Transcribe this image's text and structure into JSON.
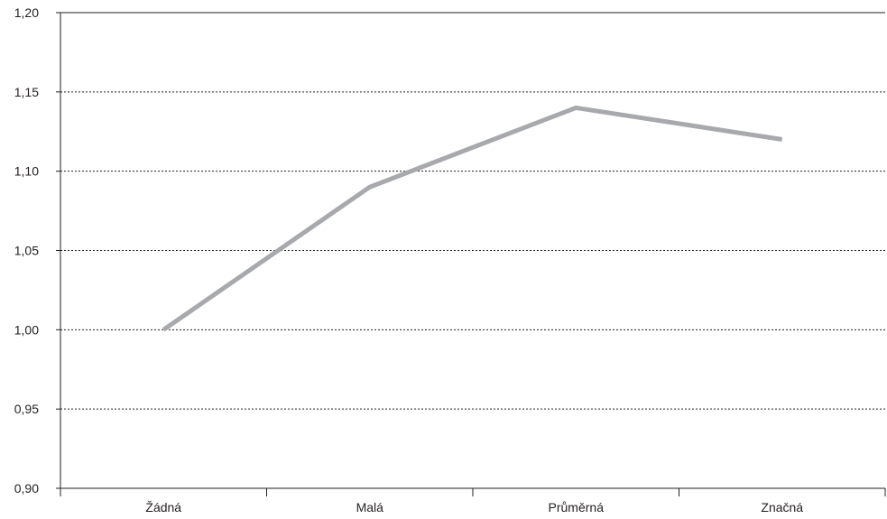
{
  "chart_data": {
    "type": "line",
    "title": "",
    "xlabel": "",
    "ylabel": "",
    "categories": [
      "Žádná",
      "Malá",
      "Průměrná",
      "Značná"
    ],
    "series": [
      {
        "values": [
          1.0,
          1.09,
          1.14,
          1.12
        ]
      }
    ],
    "ylim": [
      0.9,
      1.2
    ],
    "yticks": [
      0.9,
      0.95,
      1.0,
      1.05,
      1.1,
      1.15,
      1.2
    ],
    "ytick_labels": [
      "0,90",
      "0,95",
      "1,00",
      "1,05",
      "1,10",
      "1,15",
      "1,20"
    ],
    "grid": "horizontal dashed",
    "line_color": "#a7a9ac",
    "axis_color": "#231f20"
  }
}
